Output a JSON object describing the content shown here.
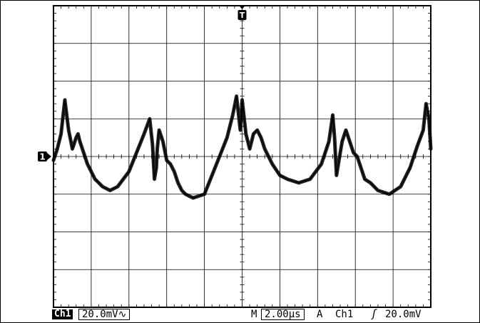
{
  "chart_data": {
    "type": "line",
    "title": "",
    "xlabel": "",
    "ylabel": "",
    "grid": true,
    "divisions": {
      "x": 10,
      "y": 8
    },
    "xlim": [
      -10,
      10
    ],
    "ylim": [
      -80,
      80
    ],
    "x_unit": "µs",
    "y_unit": "mV",
    "series": [
      {
        "x": [
          -10,
          -9.8,
          -9.6,
          -9.4,
          -9.2,
          -9.0,
          -8.8,
          -8.7,
          -8.6,
          -8.4,
          -8.2,
          -8.0,
          -7.8,
          -7.6,
          -7.4,
          -7.0,
          -6.6,
          -6.0,
          -5.6,
          -5.2,
          -4.9,
          -4.75,
          -4.65,
          -4.55,
          -4.5,
          -4.4,
          -4.2,
          -4.0,
          -3.8,
          -3.6,
          -3.4,
          -3.2,
          -3.0,
          -2.6,
          -2.0,
          -1.6,
          -1.2,
          -0.8,
          -0.5,
          -0.3,
          -0.1,
          0.0,
          0.2,
          0.4,
          0.6,
          0.8,
          1.0,
          1.2,
          1.4,
          1.6,
          2.0,
          2.4,
          3.0,
          3.6,
          4.2,
          4.6,
          4.8,
          4.9,
          5.0,
          5.1,
          5.3,
          5.5,
          5.7,
          5.9,
          6.1,
          6.3,
          6.5,
          6.8,
          7.2,
          7.8,
          8.4,
          8.9,
          9.3,
          9.6,
          9.75,
          9.9,
          10.0
        ],
        "y": [
          -2,
          4,
          12,
          30,
          14,
          4,
          10,
          12,
          8,
          2,
          -4,
          -8,
          -12,
          -14,
          -16,
          -18,
          -16,
          -8,
          2,
          12,
          20,
          6,
          -12,
          -6,
          4,
          14,
          8,
          -2,
          -4,
          -8,
          -14,
          -18,
          -20,
          -22,
          -20,
          -10,
          0,
          10,
          22,
          32,
          14,
          30,
          12,
          4,
          12,
          14,
          10,
          4,
          0,
          -4,
          -10,
          -12,
          -14,
          -12,
          -4,
          8,
          22,
          10,
          -10,
          -4,
          8,
          14,
          8,
          2,
          0,
          -6,
          -12,
          -14,
          -18,
          -20,
          -16,
          -6,
          6,
          14,
          28,
          20,
          4
        ]
      }
    ]
  },
  "readouts": {
    "channel": "Ch1",
    "volts_per_div": "20.0mV∿",
    "time_prefix": "M",
    "time_per_div": "2.00µs",
    "trigger_mode": "A",
    "trigger_source": "Ch1",
    "trigger_slope": "ʃ",
    "trigger_level": "20.0mV"
  },
  "markers": {
    "trigger": "T",
    "channel_ground": "1"
  },
  "colors": {
    "trace": "#000000",
    "grid": "#000000",
    "background": "#ffffff"
  }
}
